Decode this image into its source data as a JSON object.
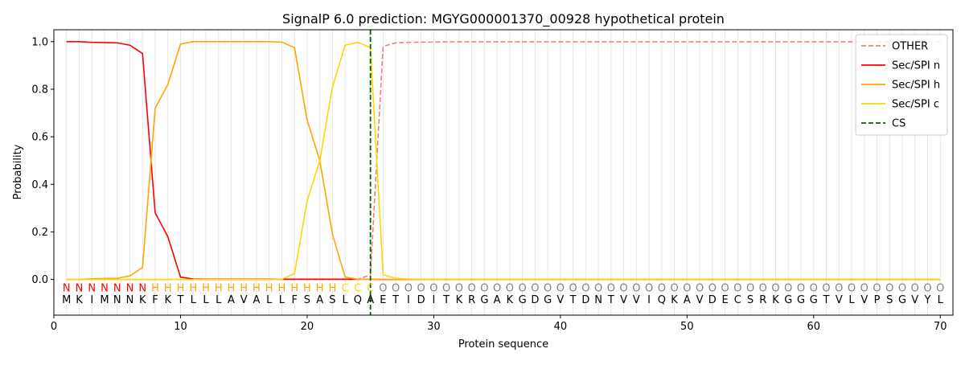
{
  "chart_data": {
    "type": "line",
    "title": "SignalP 6.0 prediction: MGYG000001370_00928 hypothetical protein",
    "xlabel": "Protein sequence",
    "ylabel": "Probability",
    "xlim": [
      0,
      71
    ],
    "ylim": [
      -0.15,
      1.05
    ],
    "xticks": [
      0,
      10,
      20,
      30,
      40,
      50,
      60,
      70
    ],
    "yticks": [
      0.0,
      0.2,
      0.4,
      0.6,
      0.8,
      1.0
    ],
    "xtick_labels": [
      "0",
      "10",
      "20",
      "30",
      "40",
      "50",
      "60",
      "70"
    ],
    "ytick_labels": [
      "0.0",
      "0.2",
      "0.4",
      "0.6",
      "0.8",
      "1.0"
    ],
    "grid": "vertical lines at each residue",
    "legend_position": "top-right",
    "cleavage_site": 25,
    "sequence": [
      "M",
      "K",
      "I",
      "M",
      "N",
      "N",
      "K",
      "F",
      "K",
      "T",
      "L",
      "L",
      "L",
      "A",
      "V",
      "A",
      "L",
      "L",
      "F",
      "S",
      "A",
      "S",
      "L",
      "Q",
      "A",
      "E",
      "T",
      "I",
      "D",
      "I",
      "T",
      "K",
      "R",
      "G",
      "A",
      "K",
      "G",
      "D",
      "G",
      "V",
      "T",
      "D",
      "N",
      "T",
      "V",
      "V",
      "I",
      "Q",
      "K",
      "A",
      "V",
      "D",
      "E",
      "C",
      "S",
      "R",
      "K",
      "G",
      "G",
      "G",
      "T",
      "V",
      "L",
      "V",
      "P",
      "S",
      "G",
      "V",
      "Y",
      "L"
    ],
    "region_labels": [
      "N",
      "N",
      "N",
      "N",
      "N",
      "N",
      "N",
      "H",
      "H",
      "H",
      "H",
      "H",
      "H",
      "H",
      "H",
      "H",
      "H",
      "H",
      "H",
      "H",
      "H",
      "H",
      "C",
      "C",
      "C",
      "O",
      "O",
      "O",
      "O",
      "O",
      "O",
      "O",
      "O",
      "O",
      "O",
      "O",
      "O",
      "O",
      "O",
      "O",
      "O",
      "O",
      "O",
      "O",
      "O",
      "O",
      "O",
      "O",
      "O",
      "O",
      "O",
      "O",
      "O",
      "O",
      "O",
      "O",
      "O",
      "O",
      "O",
      "O",
      "O",
      "O",
      "O",
      "O",
      "O",
      "O",
      "O",
      "O",
      "O",
      "O"
    ],
    "region_colors": {
      "N": "#ff0000",
      "H": "#ffa500",
      "C": "#ffd700",
      "O": "#808080"
    },
    "series": [
      {
        "name": "OTHER",
        "color": "#f08080",
        "dash": "dashed",
        "values": [
          0,
          0,
          0,
          0,
          0,
          0,
          0,
          0,
          0,
          0,
          0,
          0,
          0,
          0,
          0,
          0,
          0,
          0,
          0,
          0,
          0,
          0,
          0,
          0,
          0.02,
          0.98,
          0.995,
          0.997,
          0.998,
          0.998,
          0.999,
          0.999,
          0.999,
          0.999,
          0.999,
          0.999,
          0.999,
          0.999,
          0.999,
          0.999,
          0.999,
          0.999,
          0.999,
          0.999,
          0.999,
          0.999,
          0.999,
          0.999,
          0.999,
          0.999,
          0.999,
          0.999,
          0.999,
          0.999,
          0.999,
          0.999,
          0.999,
          0.999,
          0.999,
          0.999,
          0.999,
          0.999,
          0.999,
          0.999,
          0.999,
          0.999,
          0.999,
          0.999,
          0.999,
          0.999
        ]
      },
      {
        "name": "Sec/SPI n",
        "color": "#ff0000",
        "dash": "solid",
        "values": [
          1.0,
          1.0,
          0.997,
          0.996,
          0.995,
          0.985,
          0.95,
          0.28,
          0.18,
          0.01,
          0.002,
          0.001,
          0.001,
          0.001,
          0.001,
          0.001,
          0.001,
          0.001,
          0.001,
          0.001,
          0.001,
          0.001,
          0.001,
          0.001,
          0.001,
          0,
          0,
          0,
          0,
          0,
          0,
          0,
          0,
          0,
          0,
          0,
          0,
          0,
          0,
          0,
          0,
          0,
          0,
          0,
          0,
          0,
          0,
          0,
          0,
          0,
          0,
          0,
          0,
          0,
          0,
          0,
          0,
          0,
          0,
          0,
          0,
          0,
          0,
          0,
          0,
          0,
          0,
          0,
          0,
          0
        ]
      },
      {
        "name": "Sec/SPI h",
        "color": "#ffa500",
        "dash": "solid",
        "values": [
          0,
          0,
          0.003,
          0.004,
          0.005,
          0.015,
          0.05,
          0.72,
          0.82,
          0.99,
          1.0,
          1.0,
          1.0,
          1.0,
          1.0,
          1.0,
          1.0,
          0.998,
          0.975,
          0.67,
          0.5,
          0.19,
          0.01,
          0.001,
          0.001,
          0,
          0,
          0,
          0,
          0,
          0,
          0,
          0,
          0,
          0,
          0,
          0,
          0,
          0,
          0,
          0,
          0,
          0,
          0,
          0,
          0,
          0,
          0,
          0,
          0,
          0,
          0,
          0,
          0,
          0,
          0,
          0,
          0,
          0,
          0,
          0,
          0,
          0,
          0,
          0,
          0,
          0,
          0,
          0,
          0
        ]
      },
      {
        "name": "Sec/SPI c",
        "color": "#ffd700",
        "dash": "solid",
        "values": [
          0,
          0,
          0,
          0,
          0,
          0,
          0,
          0,
          0,
          0,
          0,
          0,
          0,
          0,
          0,
          0,
          0,
          0.001,
          0.025,
          0.33,
          0.5,
          0.81,
          0.985,
          0.997,
          0.975,
          0.02,
          0.005,
          0.002,
          0.001,
          0.001,
          0.001,
          0.001,
          0.001,
          0.001,
          0.001,
          0.001,
          0.001,
          0.001,
          0.001,
          0.001,
          0.001,
          0.001,
          0.001,
          0.001,
          0.001,
          0.001,
          0.001,
          0.001,
          0.001,
          0.001,
          0.001,
          0.001,
          0.001,
          0.001,
          0.001,
          0.001,
          0.001,
          0.001,
          0.001,
          0.001,
          0.001,
          0.001,
          0.001,
          0.001,
          0.001,
          0.001,
          0.001,
          0.001,
          0.001,
          0.001
        ]
      }
    ],
    "legend": [
      {
        "name": "OTHER",
        "color": "#f08080",
        "dash": "dashed"
      },
      {
        "name": "Sec/SPI n",
        "color": "#ff0000",
        "dash": "solid"
      },
      {
        "name": "Sec/SPI h",
        "color": "#ffa500",
        "dash": "solid"
      },
      {
        "name": "Sec/SPI c",
        "color": "#ffd700",
        "dash": "solid"
      },
      {
        "name": "CS",
        "color": "#006400",
        "dash": "dashed"
      }
    ]
  }
}
